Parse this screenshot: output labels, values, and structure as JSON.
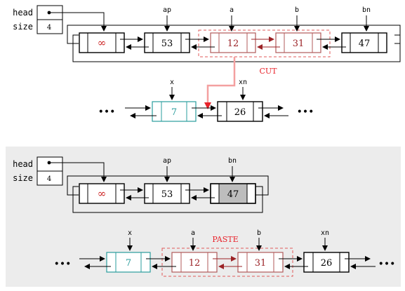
{
  "top": {
    "head_label": "head",
    "size_label": "size",
    "size_value": "4",
    "nodes": [
      {
        "value": "∞",
        "color": "#cc2222"
      },
      {
        "value": "53",
        "color": "#000000"
      },
      {
        "value": "12",
        "color": "#9b2226"
      },
      {
        "value": "31",
        "color": "#9b2226"
      },
      {
        "value": "47",
        "color": "#000000"
      }
    ],
    "pointer_labels": [
      "ap",
      "a",
      "b",
      "bn"
    ],
    "cut_label": "CUT",
    "lower_nodes": [
      {
        "value": "7",
        "color": "#2a9d9d"
      },
      {
        "value": "26",
        "color": "#000000"
      }
    ],
    "lower_labels": [
      "x",
      "xn"
    ],
    "ellipsis": "•••"
  },
  "bottom": {
    "head_label": "head",
    "size_label": "size",
    "size_value": "4",
    "nodes": [
      {
        "value": "∞",
        "color": "#cc2222"
      },
      {
        "value": "53",
        "color": "#000000"
      },
      {
        "value": "47",
        "color": "#000000"
      }
    ],
    "pointer_labels": [
      "ap",
      "bn"
    ],
    "lower_nodes": [
      {
        "value": "7",
        "color": "#2a9d9d"
      },
      {
        "value": "12",
        "color": "#9b2226"
      },
      {
        "value": "31",
        "color": "#9b2226"
      },
      {
        "value": "26",
        "color": "#000000"
      }
    ],
    "lower_labels": [
      "x",
      "a",
      "b",
      "xn"
    ],
    "paste_label": "PASTE",
    "ellipsis": "•••"
  },
  "colors": {
    "black": "#000000",
    "red_highlight": "#e05a5a",
    "cut_arrow": "#f4a0a0",
    "cut_arrow_head": "#e8222a",
    "dark_red": "#9b2226",
    "teal": "#2a9d9d",
    "panel_bg": "#ececec",
    "gray_node": "#bdbdbd"
  }
}
